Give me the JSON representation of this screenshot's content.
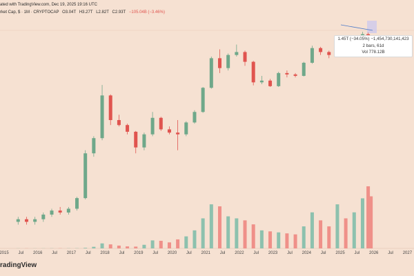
{
  "header": {
    "published": "ated with TradingView.com, Dec 19, 2025 19:16 UTC",
    "symbol": "rket Cap, $ · 1M · CRYPTOCAP",
    "open": "O3.04T",
    "high": "H3.27T",
    "low": "L2.82T",
    "close": "C2.93T",
    "change": "−105.04B (−3.46%)"
  },
  "tooltip": {
    "line1": "1.45T (−34.05%) −1,454,730,141,423",
    "line2": "2 bars, 61d",
    "line3": "Vol 778.12B"
  },
  "watermark": "radingView",
  "colors": {
    "up": "#6fa88a",
    "down": "#e0544f",
    "vol_up": "#8dc1ae",
    "vol_down": "#ef9089",
    "background": "#f6e1d2"
  },
  "chart_data": {
    "type": "candlestick",
    "title": "",
    "y_scale": "log",
    "x_tick_labels": [
      "2015",
      "Jul",
      "2016",
      "Jul",
      "2017",
      "Jul",
      "2018",
      "Jul",
      "2019",
      "Jul",
      "2020",
      "Jul",
      "2021",
      "Jul",
      "2022",
      "Jul",
      "2023",
      "Jul",
      "2024",
      "Jul",
      "2025",
      "Jul",
      "2026",
      "Jul",
      "2027"
    ],
    "grid": false,
    "legend": "none",
    "candles": [
      {
        "t": "2015-06",
        "o": 12,
        "h": 14,
        "l": 11,
        "c": 13,
        "v": 0.6
      },
      {
        "t": "2015-09",
        "o": 13,
        "h": 14,
        "l": 11,
        "c": 12,
        "v": 0.6
      },
      {
        "t": "2015-12",
        "o": 12,
        "h": 14,
        "l": 11,
        "c": 13,
        "v": 0.5
      },
      {
        "t": "2016-03",
        "o": 13,
        "h": 16,
        "l": 12,
        "c": 15,
        "v": 0.6
      },
      {
        "t": "2016-06",
        "o": 15,
        "h": 18,
        "l": 14,
        "c": 17,
        "v": 0.7
      },
      {
        "t": "2016-09",
        "o": 17,
        "h": 19,
        "l": 15,
        "c": 16,
        "v": 0.8
      },
      {
        "t": "2016-12",
        "o": 16,
        "h": 19,
        "l": 15,
        "c": 18,
        "v": 0.8
      },
      {
        "t": "2017-03",
        "o": 18,
        "h": 26,
        "l": 17,
        "c": 25,
        "v": 1
      },
      {
        "t": "2017-06",
        "o": 25,
        "h": 110,
        "l": 24,
        "c": 100,
        "v": 3
      },
      {
        "t": "2017-09",
        "o": 100,
        "h": 170,
        "l": 90,
        "c": 160,
        "v": 8
      },
      {
        "t": "2017-12",
        "o": 160,
        "h": 830,
        "l": 150,
        "c": 600,
        "v": 25
      },
      {
        "t": "2018-03",
        "o": 600,
        "h": 620,
        "l": 240,
        "c": 280,
        "v": 20
      },
      {
        "t": "2018-06",
        "o": 280,
        "h": 330,
        "l": 230,
        "c": 240,
        "v": 14
      },
      {
        "t": "2018-09",
        "o": 240,
        "h": 250,
        "l": 180,
        "c": 195,
        "v": 10
      },
      {
        "t": "2018-12",
        "o": 195,
        "h": 200,
        "l": 100,
        "c": 120,
        "v": 9
      },
      {
        "t": "2019-03",
        "o": 120,
        "h": 190,
        "l": 110,
        "c": 180,
        "v": 18
      },
      {
        "t": "2019-06",
        "o": 180,
        "h": 360,
        "l": 170,
        "c": 300,
        "v": 40
      },
      {
        "t": "2019-09",
        "o": 300,
        "h": 310,
        "l": 200,
        "c": 210,
        "v": 38
      },
      {
        "t": "2019-12",
        "o": 210,
        "h": 230,
        "l": 180,
        "c": 190,
        "v": 30
      },
      {
        "t": "2020-03",
        "o": 190,
        "h": 280,
        "l": 110,
        "c": 180,
        "v": 45
      },
      {
        "t": "2020-06",
        "o": 180,
        "h": 270,
        "l": 170,
        "c": 260,
        "v": 60
      },
      {
        "t": "2020-09",
        "o": 260,
        "h": 380,
        "l": 250,
        "c": 360,
        "v": 90
      },
      {
        "t": "2020-12",
        "o": 360,
        "h": 780,
        "l": 350,
        "c": 760,
        "v": 150
      },
      {
        "t": "2021-03",
        "o": 760,
        "h": 2000,
        "l": 740,
        "c": 1900,
        "v": 220
      },
      {
        "t": "2021-06",
        "o": 1900,
        "h": 2500,
        "l": 1200,
        "c": 1400,
        "v": 210
      },
      {
        "t": "2021-09",
        "o": 1400,
        "h": 2200,
        "l": 1300,
        "c": 2100,
        "v": 160
      },
      {
        "t": "2021-12",
        "o": 2100,
        "h": 2900,
        "l": 2000,
        "c": 2300,
        "v": 150
      },
      {
        "t": "2022-03",
        "o": 2300,
        "h": 2400,
        "l": 1500,
        "c": 1700,
        "v": 140
      },
      {
        "t": "2022-06",
        "o": 1700,
        "h": 1750,
        "l": 820,
        "c": 900,
        "v": 120
      },
      {
        "t": "2022-09",
        "o": 900,
        "h": 1100,
        "l": 850,
        "c": 950,
        "v": 90
      },
      {
        "t": "2022-12",
        "o": 950,
        "h": 1000,
        "l": 780,
        "c": 800,
        "v": 85
      },
      {
        "t": "2023-03",
        "o": 800,
        "h": 1250,
        "l": 780,
        "c": 1200,
        "v": 80
      },
      {
        "t": "2023-06",
        "o": 1200,
        "h": 1300,
        "l": 1050,
        "c": 1150,
        "v": 75
      },
      {
        "t": "2023-09",
        "o": 1150,
        "h": 1200,
        "l": 1050,
        "c": 1100,
        "v": 70
      },
      {
        "t": "2023-12",
        "o": 1100,
        "h": 1700,
        "l": 1080,
        "c": 1650,
        "v": 110
      },
      {
        "t": "2024-03",
        "o": 1650,
        "h": 2800,
        "l": 1600,
        "c": 2600,
        "v": 180
      },
      {
        "t": "2024-06",
        "o": 2600,
        "h": 2700,
        "l": 2100,
        "c": 2300,
        "v": 140
      },
      {
        "t": "2024-09",
        "o": 2300,
        "h": 2400,
        "l": 1900,
        "c": 2100,
        "v": 110
      },
      {
        "t": "2024-12",
        "o": 2100,
        "h": 3700,
        "l": 2050,
        "c": 3400,
        "v": 220
      },
      {
        "t": "2025-03",
        "o": 3400,
        "h": 3700,
        "l": 2500,
        "c": 2800,
        "v": 150
      },
      {
        "t": "2025-06",
        "o": 2800,
        "h": 3500,
        "l": 2600,
        "c": 3300,
        "v": 180
      },
      {
        "t": "2025-09",
        "o": 3300,
        "h": 4300,
        "l": 3200,
        "c": 4000,
        "v": 250
      },
      {
        "t": "2025-11",
        "o": 4000,
        "h": 4200,
        "l": 2900,
        "c": 3040,
        "v": 310
      },
      {
        "t": "2025-12",
        "o": 3040,
        "h": 3270,
        "l": 2820,
        "c": 2930,
        "v": 260
      }
    ]
  }
}
